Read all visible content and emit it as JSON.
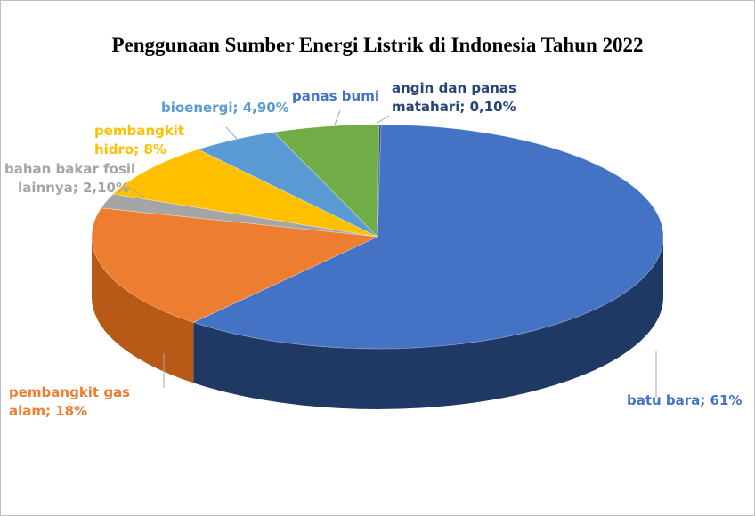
{
  "chart_data": {
    "type": "pie",
    "title": "Penggunaan Sumber Energi Listrik di Indonesia Tahun 2022",
    "slices": [
      {
        "line1": "batu bara; 61%",
        "line2": "",
        "value": 61,
        "color": "#4472c4",
        "dark": "#203864"
      },
      {
        "line1": "pembangkit gas",
        "line2": "alam; 18%",
        "value": 18,
        "color": "#ed7d31",
        "dark": "#b85a17"
      },
      {
        "line1": "bahan bakar fosil",
        "line2": "lainnya; 2,10%",
        "value": 2.1,
        "color": "#a5a5a5",
        "dark": "#7a7a7a"
      },
      {
        "line1": "pembangkit",
        "line2": "hidro; 8%",
        "value": 8,
        "color": "#ffc000",
        "dark": "#c99700"
      },
      {
        "line1": "bioenergi; 4,90%",
        "line2": "",
        "value": 4.9,
        "color": "#5b9bd5",
        "dark": "#3a75a8"
      },
      {
        "line1": "panas bumi",
        "line2": "",
        "value": 6,
        "color": "#70ad47",
        "dark": "#4f8230"
      },
      {
        "line1": "angin dan panas",
        "line2": "matahari; 0,10%",
        "value": 0.1,
        "color": "#264478",
        "dark": "#1a2f55"
      }
    ]
  }
}
